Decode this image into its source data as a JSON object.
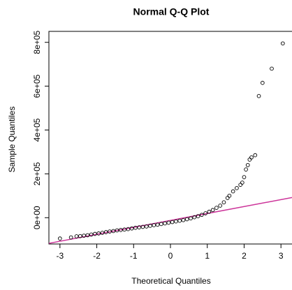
{
  "chart_data": {
    "type": "scatter",
    "title": "Normal Q-Q Plot",
    "x_label": "Theoretical Quantiles",
    "y_label": "Sample Quantiles",
    "series": [
      {
        "color": "#000000",
        "x": [
          -3.0,
          -2.7,
          -2.55,
          -2.45,
          -2.35,
          -2.25,
          -2.15,
          -2.05,
          -1.95,
          -1.85,
          -1.75,
          -1.65,
          -1.55,
          -1.45,
          -1.35,
          -1.25,
          -1.15,
          -1.05,
          -0.95,
          -0.85,
          -0.75,
          -0.65,
          -0.55,
          -0.45,
          -0.35,
          -0.25,
          -0.15,
          -0.05,
          0.05,
          0.15,
          0.25,
          0.35,
          0.45,
          0.55,
          0.65,
          0.75,
          0.85,
          0.95,
          1.05,
          1.15,
          1.25,
          1.35,
          1.45,
          1.55,
          1.6,
          1.7,
          1.8,
          1.9,
          1.95,
          2.0,
          2.05,
          2.1,
          2.15,
          2.2,
          2.3,
          2.4,
          2.5,
          2.75,
          3.05
        ],
        "values": [
          -95000,
          -90000,
          -85000,
          -84000,
          -82000,
          -80000,
          -77000,
          -74000,
          -72000,
          -69000,
          -66000,
          -63000,
          -61000,
          -58000,
          -56000,
          -54000,
          -52000,
          -49000,
          -46000,
          -44000,
          -42000,
          -40000,
          -37000,
          -34000,
          -32000,
          -29000,
          -26000,
          -23000,
          -20000,
          -17000,
          -14000,
          -11000,
          -7000,
          -3000,
          2000,
          7000,
          13000,
          20000,
          27000,
          35000,
          45000,
          55000,
          70000,
          90000,
          100000,
          120000,
          135000,
          150000,
          160000,
          185000,
          220000,
          240000,
          265000,
          275000,
          285000,
          555000,
          615000,
          680000,
          795000
        ]
      }
    ],
    "qqline": {
      "color": "#cc3399",
      "x": [
        -3.3,
        3.3
      ],
      "y": [
        -117000,
        92000
      ]
    },
    "xlim": [
      -3.3,
      3.3
    ],
    "ylim": [
      -120000,
      850000
    ],
    "xticks": [
      -3,
      -2,
      -1,
      0,
      1,
      2,
      3
    ],
    "yticks": [
      {
        "value": 0,
        "label": "0e+00"
      },
      {
        "value": 200000,
        "label": "2e+05"
      },
      {
        "value": 400000,
        "label": "4e+05"
      },
      {
        "value": 600000,
        "label": "6e+05"
      },
      {
        "value": 800000,
        "label": "8e+05"
      }
    ]
  }
}
